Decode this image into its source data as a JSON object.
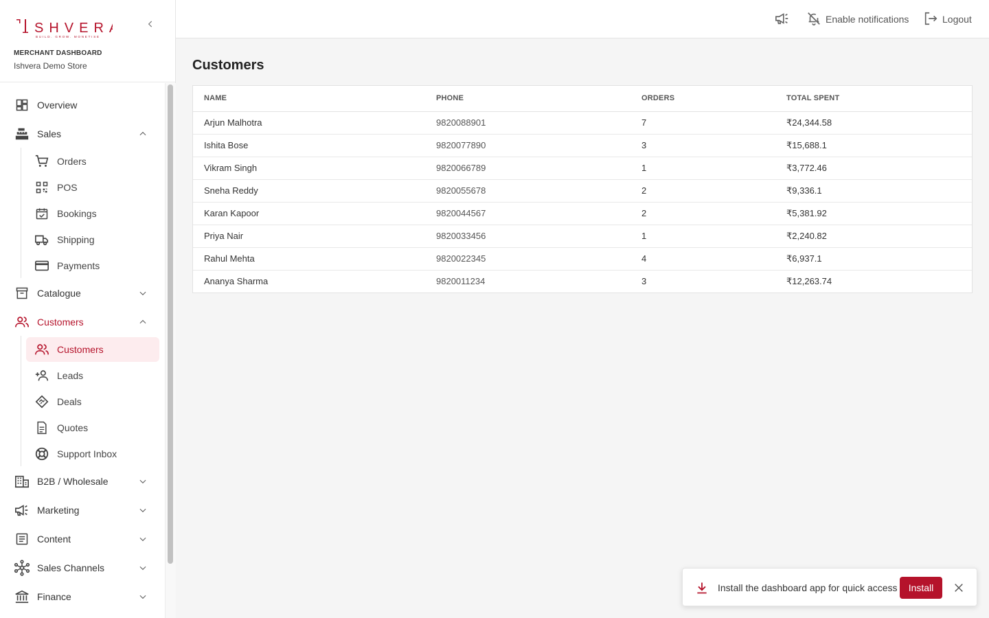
{
  "brand": {
    "logo_text": "ISHVERA",
    "logo_tagline": "BUILD. GROW. MONETISE",
    "subtitle": "MERCHANT DASHBOARD",
    "store_name": "Ishvera Demo Store"
  },
  "sidebar": {
    "overview": "Overview",
    "sales": "Sales",
    "sales_items": [
      "Orders",
      "POS",
      "Bookings",
      "Shipping",
      "Payments"
    ],
    "catalogue": "Catalogue",
    "customers": "Customers",
    "customers_items": [
      "Customers",
      "Leads",
      "Deals",
      "Quotes",
      "Support Inbox"
    ],
    "b2b": "B2B / Wholesale",
    "marketing": "Marketing",
    "content": "Content",
    "sales_channels": "Sales Channels",
    "finance": "Finance"
  },
  "topbar": {
    "notifications_label": "Enable notifications",
    "logout_label": "Logout"
  },
  "page": {
    "title": "Customers"
  },
  "table": {
    "headers": [
      "NAME",
      "PHONE",
      "ORDERS",
      "TOTAL SPENT"
    ],
    "rows": [
      [
        "Arjun Malhotra",
        "9820088901",
        "7",
        "₹24,344.58"
      ],
      [
        "Ishita Bose",
        "9820077890",
        "3",
        "₹15,688.1"
      ],
      [
        "Vikram Singh",
        "9820066789",
        "1",
        "₹3,772.46"
      ],
      [
        "Sneha Reddy",
        "9820055678",
        "2",
        "₹9,336.1"
      ],
      [
        "Karan Kapoor",
        "9820044567",
        "2",
        "₹5,381.92"
      ],
      [
        "Priya Nair",
        "9820033456",
        "1",
        "₹2,240.82"
      ],
      [
        "Rahul Mehta",
        "9820022345",
        "4",
        "₹6,937.1"
      ],
      [
        "Ananya Sharma",
        "9820011234",
        "3",
        "₹12,263.74"
      ]
    ]
  },
  "toast": {
    "message": "Install the dashboard app for quick access",
    "install_label": "Install"
  },
  "colors": {
    "accent": "#b5132b",
    "active_bg": "#fdecee"
  }
}
